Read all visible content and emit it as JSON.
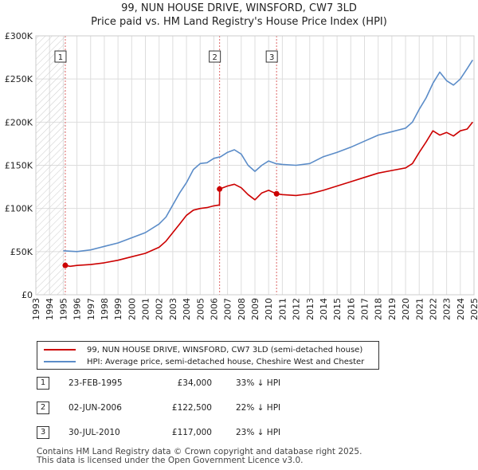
{
  "chart_data": {
    "type": "line",
    "title": "99, NUN HOUSE DRIVE, WINSFORD, CW7 3LD",
    "subtitle": "Price paid vs. HM Land Registry's House Price Index (HPI)",
    "xlabel": "",
    "ylabel": "",
    "xlim": [
      1993,
      2025
    ],
    "ylim": [
      0,
      300000
    ],
    "y_ticks": [
      0,
      50000,
      100000,
      150000,
      200000,
      250000,
      300000
    ],
    "y_tick_labels": [
      "£0",
      "£50K",
      "£100K",
      "£150K",
      "£200K",
      "£250K",
      "£300K"
    ],
    "x_ticks": [
      "1993",
      "1994",
      "1995",
      "1996",
      "1997",
      "1998",
      "1999",
      "2000",
      "2001",
      "2002",
      "2003",
      "2004",
      "2005",
      "2006",
      "2007",
      "2008",
      "2009",
      "2010",
      "2011",
      "2012",
      "2013",
      "2014",
      "2015",
      "2016",
      "2017",
      "2018",
      "2019",
      "2020",
      "2021",
      "2022",
      "2023",
      "2024",
      "2025"
    ],
    "grid": true,
    "legend_position": "bottom",
    "series": [
      {
        "name": "99, NUN HOUSE DRIVE, WINSFORD, CW7 3LD (semi-detached house)",
        "color": "#cc0000",
        "x": [
          1995.15,
          1995.5,
          1996,
          1997,
          1998,
          1999,
          2000,
          2001,
          2002,
          2002.5,
          2003,
          2003.5,
          2004,
          2004.5,
          2005,
          2005.5,
          2006,
          2006.41,
          2006.42,
          2007,
          2007.5,
          2008,
          2008.5,
          2009,
          2009.5,
          2010,
          2010.58,
          2011,
          2012,
          2013,
          2014,
          2015,
          2016,
          2017,
          2018,
          2019,
          2020,
          2020.5,
          2021,
          2021.5,
          2022,
          2022.5,
          2023,
          2023.5,
          2024,
          2024.5,
          2024.9
        ],
        "y": [
          34000,
          33000,
          34000,
          35000,
          37000,
          40000,
          44000,
          48000,
          55000,
          62000,
          72000,
          82000,
          92000,
          98000,
          100000,
          101000,
          103000,
          104000,
          122500,
          126000,
          128000,
          124000,
          116000,
          110000,
          118000,
          121000,
          117000,
          116000,
          115000,
          117000,
          121000,
          126000,
          131000,
          136000,
          141000,
          144000,
          147000,
          152000,
          165000,
          177000,
          190000,
          185000,
          188000,
          184000,
          190000,
          192000,
          200000
        ]
      },
      {
        "name": "HPI: Average price, semi-detached house, Cheshire West and Chester",
        "color": "#5b8cc8",
        "x": [
          1995,
          1996,
          1997,
          1998,
          1999,
          2000,
          2001,
          2002,
          2002.5,
          2003,
          2003.5,
          2004,
          2004.5,
          2005,
          2005.5,
          2006,
          2006.5,
          2007,
          2007.5,
          2008,
          2008.5,
          2009,
          2009.5,
          2010,
          2010.5,
          2011,
          2012,
          2013,
          2014,
          2015,
          2016,
          2017,
          2018,
          2019,
          2020,
          2020.5,
          2021,
          2021.5,
          2022,
          2022.5,
          2023,
          2023.5,
          2024,
          2024.5,
          2024.9
        ],
        "y": [
          51000,
          50000,
          52000,
          56000,
          60000,
          66000,
          72000,
          82000,
          90000,
          104000,
          118000,
          130000,
          145000,
          152000,
          153000,
          158000,
          160000,
          165000,
          168000,
          163000,
          150000,
          143000,
          150000,
          155000,
          152000,
          151000,
          150000,
          152000,
          160000,
          165000,
          171000,
          178000,
          185000,
          189000,
          193000,
          200000,
          215000,
          228000,
          245000,
          258000,
          248000,
          243000,
          250000,
          262000,
          272000
        ]
      }
    ],
    "markers": [
      {
        "label": "1",
        "x": 1995.15,
        "y": 34000
      },
      {
        "label": "2",
        "x": 2006.42,
        "y": 122500
      },
      {
        "label": "3",
        "x": 2010.58,
        "y": 117000
      }
    ],
    "annotations": [
      "1",
      "2",
      "3"
    ]
  },
  "legend": {
    "items": [
      {
        "label": "99, NUN HOUSE DRIVE, WINSFORD, CW7 3LD (semi-detached house)",
        "color": "#cc0000"
      },
      {
        "label": "HPI: Average price, semi-detached house, Cheshire West and Chester",
        "color": "#5b8cc8"
      }
    ]
  },
  "transactions": [
    {
      "num": "1",
      "date": "23-FEB-1995",
      "price": "£34,000",
      "hpi": "33% ↓ HPI"
    },
    {
      "num": "2",
      "date": "02-JUN-2006",
      "price": "£122,500",
      "hpi": "22% ↓ HPI"
    },
    {
      "num": "3",
      "date": "30-JUL-2010",
      "price": "£117,000",
      "hpi": "23% ↓ HPI"
    }
  ],
  "footer": {
    "line1": "Contains HM Land Registry data © Crown copyright and database right 2025.",
    "line2": "This data is licensed under the Open Government Licence v3.0."
  }
}
